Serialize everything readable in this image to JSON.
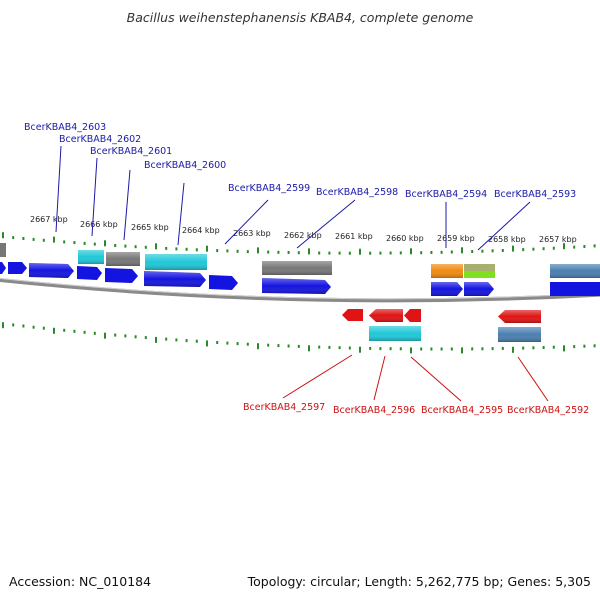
{
  "title": "Bacillus weihenstephanensis KBAB4, complete genome",
  "accession": "Accession: NC_010184",
  "topology": "Topology: circular; Length: 5,262,775 bp; Genes: 5,305",
  "colors": {
    "forward_label": "#1a1aa8",
    "reverse_label": "#cc1111",
    "tick": "#2a8a2a",
    "backbone": "#888888",
    "cds_forward": "#1414e0",
    "cds_reverse": "#e01414",
    "feat_cyan": "#20c8d8",
    "feat_gray": "#777777",
    "feat_orange": "#f08a10",
    "feat_olive": "#a8b070",
    "feat_green": "#80e020",
    "feat_steel": "#4a7fb0"
  },
  "scale_labels": [
    {
      "text": "2667 kbp",
      "kbp": 2667
    },
    {
      "text": "2666 kbp",
      "kbp": 2666
    },
    {
      "text": "2665 kbp",
      "kbp": 2665
    },
    {
      "text": "2664 kbp",
      "kbp": 2664
    },
    {
      "text": "2663 kbp",
      "kbp": 2663
    },
    {
      "text": "2662 kbp",
      "kbp": 2662
    },
    {
      "text": "2661 kbp",
      "kbp": 2661
    },
    {
      "text": "2660 kbp",
      "kbp": 2660
    },
    {
      "text": "2659 kbp",
      "kbp": 2659
    },
    {
      "text": "2658 kbp",
      "kbp": 2658
    },
    {
      "text": "2657 kbp",
      "kbp": 2657
    }
  ],
  "forward_labels": [
    {
      "text": "BcerKBAB4_2603"
    },
    {
      "text": "BcerKBAB4_2602"
    },
    {
      "text": "BcerKBAB4_2601"
    },
    {
      "text": "BcerKBAB4_2600"
    },
    {
      "text": "BcerKBAB4_2599"
    },
    {
      "text": "BcerKBAB4_2598"
    },
    {
      "text": "BcerKBAB4_2594"
    },
    {
      "text": "BcerKBAB4_2593"
    }
  ],
  "reverse_labels": [
    {
      "text": "BcerKBAB4_2597"
    },
    {
      "text": "BcerKBAB4_2596"
    },
    {
      "text": "BcerKBAB4_2595"
    },
    {
      "text": "BcerKBAB4_2592"
    }
  ]
}
